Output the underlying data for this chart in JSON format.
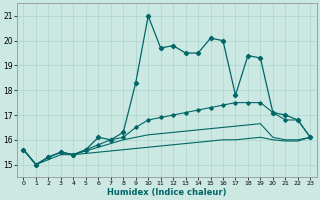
{
  "xlabel": "Humidex (Indice chaleur)",
  "xlim": [
    -0.5,
    23.5
  ],
  "ylim": [
    14.5,
    21.5
  ],
  "yticks": [
    15,
    16,
    17,
    18,
    19,
    20,
    21
  ],
  "xticks": [
    0,
    1,
    2,
    3,
    4,
    5,
    6,
    7,
    8,
    9,
    10,
    11,
    12,
    13,
    14,
    15,
    16,
    17,
    18,
    19,
    20,
    21,
    22,
    23
  ],
  "xtick_labels": [
    "0",
    "1",
    "2",
    "3",
    "4",
    "5",
    "6",
    "7",
    "8",
    "9",
    "10",
    "11",
    "12",
    "13",
    "14",
    "15",
    "16",
    "17",
    "18",
    "19",
    "20",
    "21",
    "22",
    "23"
  ],
  "background_color": "#cce8e2",
  "grid_color": "#b0d8d0",
  "line_color": "#006666",
  "series_main": [
    [
      0,
      15.6
    ],
    [
      1,
      15.0
    ],
    [
      2,
      15.3
    ],
    [
      3,
      15.5
    ],
    [
      4,
      15.4
    ],
    [
      5,
      15.6
    ],
    [
      6,
      16.1
    ],
    [
      7,
      16.0
    ],
    [
      8,
      16.3
    ],
    [
      9,
      18.3
    ],
    [
      10,
      21.0
    ],
    [
      11,
      19.7
    ],
    [
      12,
      19.8
    ],
    [
      13,
      19.5
    ],
    [
      14,
      19.5
    ],
    [
      15,
      20.1
    ],
    [
      16,
      20.0
    ],
    [
      17,
      17.8
    ],
    [
      18,
      19.4
    ],
    [
      19,
      19.3
    ],
    [
      20,
      17.1
    ],
    [
      21,
      17.0
    ],
    [
      22,
      16.8
    ],
    [
      23,
      16.1
    ]
  ],
  "series_line2": [
    [
      0,
      15.6
    ],
    [
      1,
      15.0
    ],
    [
      2,
      15.3
    ],
    [
      3,
      15.5
    ],
    [
      4,
      15.4
    ],
    [
      5,
      15.6
    ],
    [
      6,
      15.8
    ],
    [
      7,
      16.0
    ],
    [
      8,
      16.1
    ],
    [
      9,
      16.5
    ],
    [
      10,
      16.8
    ],
    [
      11,
      16.9
    ],
    [
      12,
      17.0
    ],
    [
      13,
      17.1
    ],
    [
      14,
      17.2
    ],
    [
      15,
      17.3
    ],
    [
      16,
      17.4
    ],
    [
      17,
      17.5
    ],
    [
      18,
      17.5
    ],
    [
      19,
      17.5
    ],
    [
      20,
      17.1
    ],
    [
      21,
      16.8
    ],
    [
      22,
      16.8
    ],
    [
      23,
      16.1
    ]
  ],
  "series_line3": [
    [
      0,
      15.6
    ],
    [
      1,
      15.0
    ],
    [
      2,
      15.3
    ],
    [
      3,
      15.5
    ],
    [
      4,
      15.4
    ],
    [
      5,
      15.55
    ],
    [
      6,
      15.7
    ],
    [
      7,
      15.85
    ],
    [
      8,
      16.0
    ],
    [
      9,
      16.1
    ],
    [
      10,
      16.2
    ],
    [
      11,
      16.25
    ],
    [
      12,
      16.3
    ],
    [
      13,
      16.35
    ],
    [
      14,
      16.4
    ],
    [
      15,
      16.45
    ],
    [
      16,
      16.5
    ],
    [
      17,
      16.55
    ],
    [
      18,
      16.6
    ],
    [
      19,
      16.65
    ],
    [
      20,
      16.1
    ],
    [
      21,
      16.0
    ],
    [
      22,
      16.0
    ],
    [
      23,
      16.1
    ]
  ],
  "series_line4": [
    [
      0,
      15.6
    ],
    [
      1,
      15.0
    ],
    [
      2,
      15.2
    ],
    [
      3,
      15.4
    ],
    [
      4,
      15.4
    ],
    [
      5,
      15.45
    ],
    [
      6,
      15.5
    ],
    [
      7,
      15.55
    ],
    [
      8,
      15.6
    ],
    [
      9,
      15.65
    ],
    [
      10,
      15.7
    ],
    [
      11,
      15.75
    ],
    [
      12,
      15.8
    ],
    [
      13,
      15.85
    ],
    [
      14,
      15.9
    ],
    [
      15,
      15.95
    ],
    [
      16,
      16.0
    ],
    [
      17,
      16.0
    ],
    [
      18,
      16.05
    ],
    [
      19,
      16.1
    ],
    [
      20,
      16.0
    ],
    [
      21,
      15.95
    ],
    [
      22,
      15.95
    ],
    [
      23,
      16.1
    ]
  ]
}
